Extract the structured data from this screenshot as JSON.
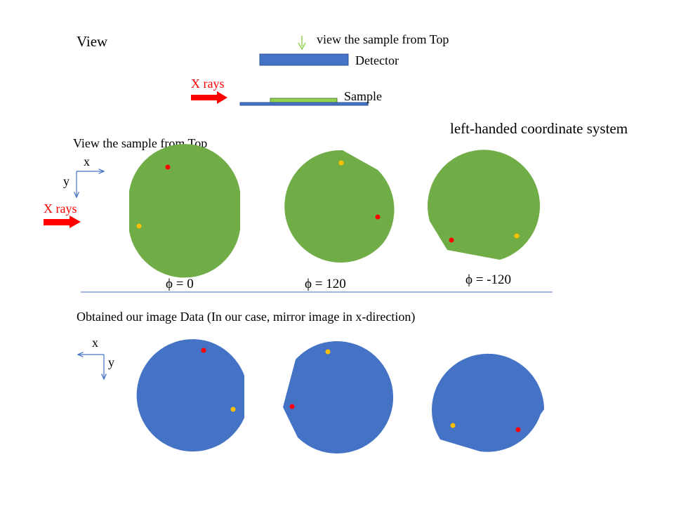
{
  "header": {
    "view_label": "View",
    "top_view_note": "view the sample from Top",
    "detector_label": "Detector",
    "sample_label": "Sample",
    "xrays_label": "X rays"
  },
  "top_row": {
    "section_title": "View the sample from Top",
    "coordinate_note": "left-handed coordinate system",
    "axis_x": "x",
    "axis_y": "y",
    "xrays_label": "X rays",
    "angles": [
      "ϕ = 0",
      "ϕ = 120",
      "ϕ = -120"
    ]
  },
  "bottom_row": {
    "section_title": "Obtained our image Data (In our case, mirror image in x-direction)",
    "axis_x": "x",
    "axis_y": "y"
  },
  "colors": {
    "sample_green": "#70ad47",
    "image_blue": "#4472c4",
    "detector_blue": "#4472c4",
    "arrow_red": "#ff0000",
    "text_red": "#ff0000",
    "marker_red": "#ff0000",
    "marker_yellow": "#ffc000",
    "indicator_green": "#92d050",
    "axis_blue": "#4472c4"
  }
}
